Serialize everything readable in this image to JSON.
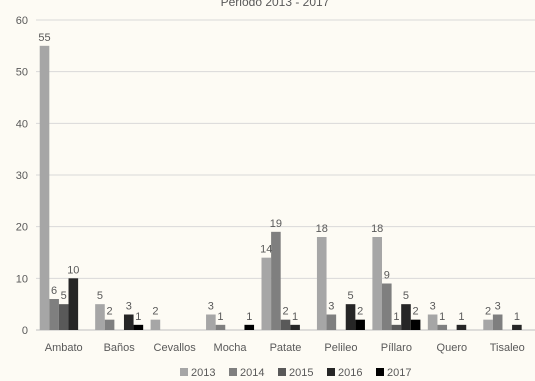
{
  "colors": {
    "background": "#fdfbf4",
    "grid": "#d9d9d9",
    "text": "#595959",
    "series": [
      "#a6a6a6",
      "#7f7f7f",
      "#595959",
      "#262626",
      "#000000"
    ]
  },
  "chart_data": {
    "type": "bar",
    "title": "Periodo 2013 - 2017",
    "xlabel": "",
    "ylabel": "",
    "ylim": [
      0,
      60
    ],
    "yticks": [
      0,
      10,
      20,
      30,
      40,
      50,
      60
    ],
    "grid": true,
    "legend_position": "bottom",
    "categories": [
      "Ambato",
      "Baños",
      "Cevallos",
      "Mocha",
      "Patate",
      "Pelileo",
      "Píllaro",
      "Quero",
      "Tisaleo"
    ],
    "series": [
      {
        "name": "2013",
        "values": [
          55,
          5,
          2,
          3,
          14,
          18,
          18,
          3,
          2
        ]
      },
      {
        "name": "2014",
        "values": [
          6,
          2,
          null,
          1,
          19,
          3,
          9,
          1,
          3
        ]
      },
      {
        "name": "2015",
        "values": [
          5,
          null,
          null,
          null,
          2,
          null,
          1,
          null,
          null
        ]
      },
      {
        "name": "2016",
        "values": [
          10,
          3,
          null,
          null,
          1,
          5,
          5,
          1,
          1
        ]
      },
      {
        "name": "2017",
        "values": [
          null,
          1,
          null,
          1,
          null,
          2,
          2,
          null,
          null
        ]
      }
    ]
  }
}
